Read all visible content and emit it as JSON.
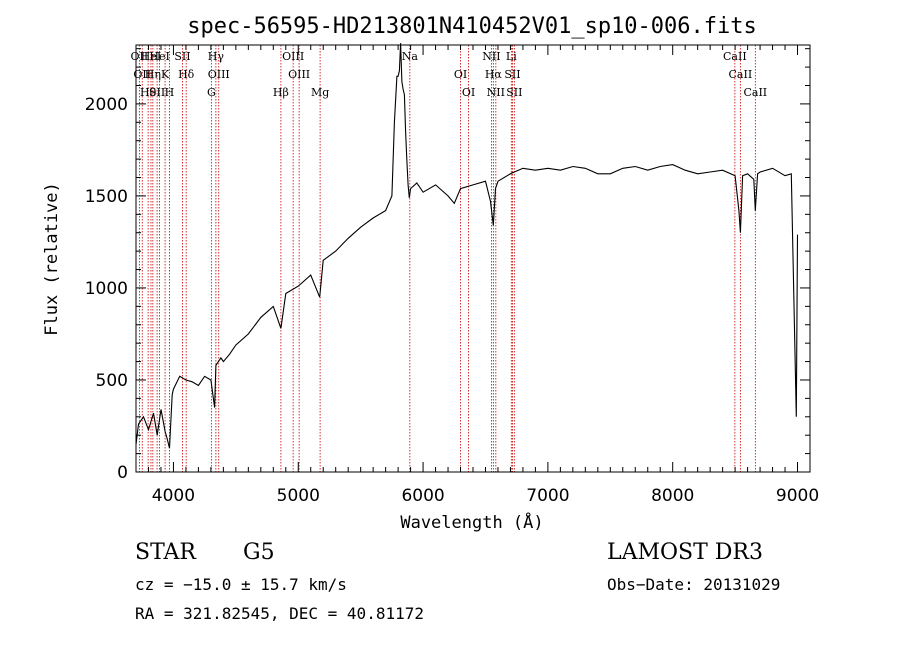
{
  "chart_data": {
    "type": "line",
    "title": "spec-56595-HD213801N410452V01_sp10-006.fits",
    "xlabel": "Wavelength (Å)",
    "ylabel": "Flux (relative)",
    "xlim": [
      3700,
      9100
    ],
    "ylim": [
      0,
      2320
    ],
    "xticks": [
      4000,
      5000,
      6000,
      7000,
      8000,
      9000
    ],
    "yticks": [
      0,
      500,
      1000,
      1500,
      2000
    ],
    "grid": false,
    "series": [
      {
        "x": [
          3700,
          3720,
          3760,
          3800,
          3840,
          3870,
          3900,
          3933,
          3950,
          3968,
          3990,
          4000,
          4050,
          4100,
          4150,
          4200,
          4250,
          4300,
          4330,
          4340,
          4380,
          4400,
          4450,
          4500,
          4600,
          4700,
          4800,
          4861,
          4900,
          5000,
          5100,
          5172,
          5200,
          5300,
          5400,
          5500,
          5600,
          5700,
          5750,
          5770,
          5790,
          5800,
          5810,
          5820,
          5830,
          5840,
          5850,
          5860,
          5870,
          5880,
          5890,
          5900,
          5950,
          6000,
          6100,
          6200,
          6250,
          6300,
          6400,
          6500,
          6540,
          6563,
          6580,
          6600,
          6700,
          6800,
          6900,
          7000,
          7100,
          7200,
          7300,
          7400,
          7500,
          7600,
          7700,
          7800,
          7900,
          8000,
          8100,
          8200,
          8300,
          8400,
          8500,
          8530,
          8542,
          8560,
          8600,
          8650,
          8662,
          8680,
          8700,
          8800,
          8900,
          8950,
          8990,
          9000
        ],
        "y": [
          150,
          260,
          300,
          230,
          320,
          200,
          340,
          220,
          180,
          130,
          420,
          450,
          520,
          500,
          490,
          470,
          520,
          500,
          350,
          580,
          620,
          600,
          640,
          690,
          750,
          840,
          900,
          780,
          970,
          1010,
          1070,
          950,
          1150,
          1200,
          1270,
          1330,
          1380,
          1420,
          1500,
          1900,
          2150,
          2150,
          2180,
          2330,
          2120,
          2080,
          2050,
          1850,
          1700,
          1560,
          1490,
          1540,
          1570,
          1520,
          1560,
          1500,
          1460,
          1540,
          1560,
          1580,
          1470,
          1340,
          1540,
          1580,
          1620,
          1650,
          1640,
          1650,
          1640,
          1660,
          1650,
          1620,
          1620,
          1650,
          1660,
          1640,
          1660,
          1670,
          1640,
          1620,
          1630,
          1640,
          1610,
          1420,
          1300,
          1610,
          1620,
          1590,
          1420,
          1620,
          1630,
          1650,
          1610,
          1620,
          300,
          1290
        ]
      }
    ],
    "lines": [
      {
        "x": 3727,
        "labels": [
          "OII"
        ]
      },
      {
        "x": 3750,
        "labels": [
          "OII"
        ]
      },
      {
        "x": 3797,
        "labels": [
          "Hθ"
        ]
      },
      {
        "x": 3820,
        "labels": [
          "HeI"
        ]
      },
      {
        "x": 3835,
        "labels": [
          "Hη"
        ]
      },
      {
        "x": 3869,
        "labels": [
          "SII"
        ]
      },
      {
        "x": 3889,
        "labels": [
          "HeI"
        ]
      },
      {
        "x": 3933,
        "labels": [
          "K"
        ]
      },
      {
        "x": 3968,
        "labels": [
          "H"
        ]
      },
      {
        "x": 4072,
        "labels": [
          "SII"
        ]
      },
      {
        "x": 4102,
        "labels": [
          "Hδ"
        ]
      },
      {
        "x": 4304,
        "labels": [
          "G"
        ]
      },
      {
        "x": 4340,
        "labels": [
          "Hγ"
        ]
      },
      {
        "x": 4363,
        "labels": [
          "OIII"
        ]
      },
      {
        "x": 4861,
        "labels": [
          "Hβ"
        ]
      },
      {
        "x": 4959,
        "labels": [
          "OIII"
        ]
      },
      {
        "x": 5007,
        "labels": [
          "OIII"
        ]
      },
      {
        "x": 5175,
        "labels": [
          "Mg"
        ]
      },
      {
        "x": 5894,
        "labels": [
          "Na"
        ]
      },
      {
        "x": 6300,
        "labels": [
          "OI"
        ]
      },
      {
        "x": 6364,
        "labels": [
          "OI"
        ]
      },
      {
        "x": 6548,
        "labels": [
          "NII"
        ]
      },
      {
        "x": 6563,
        "labels": [
          "Hα"
        ]
      },
      {
        "x": 6583,
        "labels": [
          "NII"
        ]
      },
      {
        "x": 6707,
        "labels": [
          "Li"
        ]
      },
      {
        "x": 6716,
        "labels": [
          "SII"
        ]
      },
      {
        "x": 6731,
        "labels": [
          "SII"
        ]
      },
      {
        "x": 8498,
        "labels": [
          "CaII"
        ]
      },
      {
        "x": 8542,
        "labels": [
          "CaII"
        ]
      },
      {
        "x": 8662,
        "labels": [
          "CaII"
        ]
      }
    ],
    "line_color": "#cc0000"
  },
  "info": {
    "object_class": "STAR",
    "subclass": "G5",
    "survey": "LAMOST DR3",
    "cz": "cz = −15.0 ± 15.7 km/s",
    "obs_date": "Obs−Date: 20131029",
    "coords": "RA = 321.82545, DEC =  40.81172"
  }
}
